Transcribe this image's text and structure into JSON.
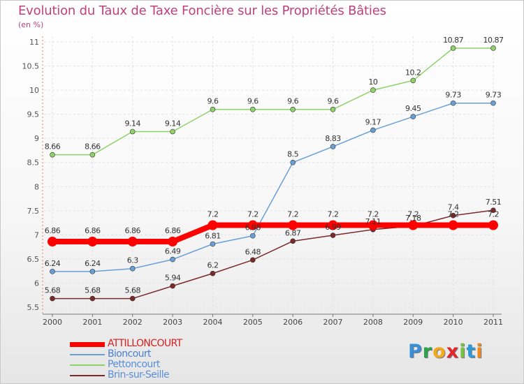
{
  "title": "Evolution du Taux de Taxe Foncière sur les Propriétés Bâties",
  "subtitle": "(en %)",
  "brand": {
    "letters": [
      "P",
      "r",
      "o",
      "x",
      "i",
      "t",
      "i"
    ],
    "colors": [
      "#3b8fd6",
      "#2aa34a",
      "#f4a81d",
      "#e2262d",
      "#7ac143",
      "#2d9ad8",
      "#f18a1e"
    ]
  },
  "chart_data": {
    "type": "line",
    "title": "Evolution du Taux de Taxe Foncière sur les Propriétés Bâties",
    "ylabel": "(en %)",
    "xlabel": "",
    "x": [
      "2000",
      "2001",
      "2002",
      "2003",
      "2004",
      "2005",
      "2006",
      "2007",
      "2008",
      "2009",
      "2010",
      "2011"
    ],
    "ylim": [
      5.5,
      11
    ],
    "yticks": [
      "5.5",
      "6",
      "6.5",
      "7",
      "7.5",
      "8",
      "8.5",
      "9",
      "9.5",
      "10",
      "10.5",
      "11"
    ],
    "legend_position": "bottom-left",
    "series": [
      {
        "name": "ATTILLONCOURT",
        "color": "#ff0000",
        "highlight": true,
        "values": [
          6.86,
          6.86,
          6.86,
          6.86,
          7.2,
          7.2,
          7.2,
          7.2,
          7.2,
          7.2,
          7.2,
          7.2
        ],
        "labels": [
          "6.86",
          "6.86",
          "6.86",
          "6.86",
          "7.2",
          "7.2",
          "7.2",
          "7.2",
          "7.2",
          "7.2",
          "7.2",
          "7.2"
        ]
      },
      {
        "name": "Bioncourt",
        "color": "#6a9fd6",
        "highlight": false,
        "values": [
          6.24,
          6.24,
          6.3,
          6.49,
          6.81,
          6.98,
          8.5,
          8.83,
          9.17,
          9.45,
          9.73,
          9.73
        ],
        "labels": [
          "6.24",
          "6.24",
          "6.3",
          "6.49",
          "6.81",
          "6.98",
          "8.5",
          "8.83",
          "9.17",
          "9.45",
          "9.73",
          "9.73"
        ]
      },
      {
        "name": "Pettoncourt",
        "color": "#8fd16a",
        "highlight": false,
        "values": [
          8.66,
          8.66,
          9.14,
          9.14,
          9.6,
          9.6,
          9.6,
          9.6,
          10,
          10.2,
          10.87,
          10.87
        ],
        "labels": [
          "8.66",
          "8.66",
          "9.14",
          "9.14",
          "9.6",
          "9.6",
          "9.6",
          "9.6",
          "10",
          "10.2",
          "10.87",
          "10.87"
        ]
      },
      {
        "name": "Brin-sur-Seille",
        "color": "#7a2a2a",
        "highlight": false,
        "values": [
          5.68,
          5.68,
          5.68,
          5.94,
          6.2,
          6.48,
          6.87,
          6.99,
          7.11,
          7.18,
          7.4,
          7.51
        ],
        "labels": [
          "5.68",
          "5.68",
          "5.68",
          "5.94",
          "6.2",
          "6.48",
          "6.87",
          "6.99",
          "7.11",
          "7.18",
          "7.4",
          "7.51"
        ]
      }
    ]
  }
}
